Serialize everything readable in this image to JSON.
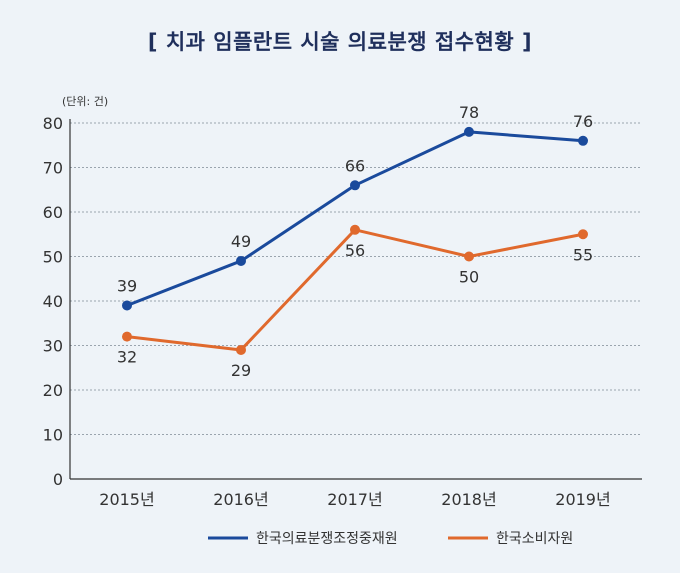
{
  "chart_data": {
    "type": "line",
    "title": "[ 치과 임플란트 시술 의료분쟁 접수현황 ]",
    "unit_label": "(단위: 건)",
    "categories": [
      "2015년",
      "2016년",
      "2017년",
      "2018년",
      "2019년"
    ],
    "ylim": [
      0,
      80
    ],
    "yticks": [
      0,
      10,
      20,
      30,
      40,
      50,
      60,
      70,
      80
    ],
    "grid": true,
    "legend_position": "bottom-right",
    "series": [
      {
        "name": "한국의료분쟁조정중재원",
        "values": [
          39,
          49,
          66,
          78,
          76
        ],
        "color": "#1a4a9c",
        "labels": [
          "39",
          "49",
          "66",
          "78",
          "76"
        ],
        "label_position": "above"
      },
      {
        "name": "한국소비자원",
        "values": [
          32,
          29,
          56,
          50,
          55
        ],
        "color": "#e0692d",
        "labels": [
          "32",
          "29",
          "56",
          "50",
          "55"
        ],
        "label_position": "below"
      }
    ]
  }
}
